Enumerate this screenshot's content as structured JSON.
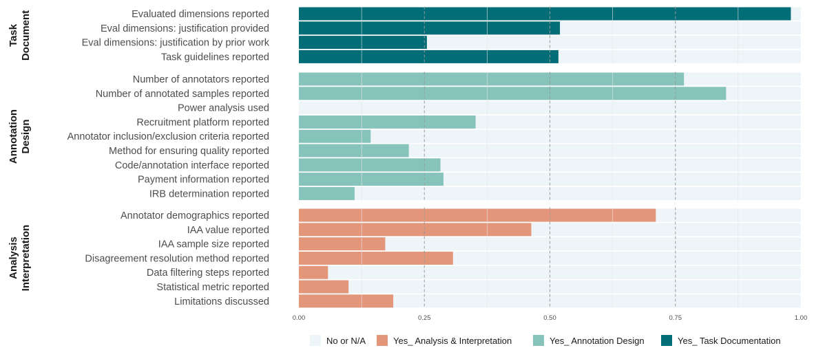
{
  "chart_data": {
    "type": "bar",
    "orientation": "horizontal",
    "stacked": true,
    "xlim": [
      0,
      1
    ],
    "x_ticks": [
      "0.00",
      "0.25",
      "0.50",
      "0.75",
      "1.00"
    ],
    "grid": true,
    "legend_position": "bottom",
    "legend": [
      {
        "label": "No or N/A",
        "color": "#edf5f8"
      },
      {
        "label": "Yes_ Analysis & Interpretation",
        "color": "#e3967a"
      },
      {
        "label": "Yes_ Annotation Design",
        "color": "#86c4bb"
      },
      {
        "label": "Yes_ Task Documentation",
        "color": "#006d77"
      }
    ],
    "groups": [
      {
        "label": [
          "Task",
          "Document"
        ],
        "color": "#006d77",
        "items": [
          {
            "label": "Evaluated dimensions reported",
            "value": 0.98
          },
          {
            "label": "Eval dimensions: justification provided",
            "value": 0.52
          },
          {
            "label": "Eval dimensions: justification by prior work",
            "value": 0.255
          },
          {
            "label": "Task guidelines reported",
            "value": 0.517
          }
        ]
      },
      {
        "label": [
          "Annotation",
          "Design"
        ],
        "color": "#86c4bb",
        "items": [
          {
            "label": "Number of annotators reported",
            "value": 0.767
          },
          {
            "label": "Number of annotated samples reported",
            "value": 0.851
          },
          {
            "label": "Power analysis used",
            "value": 0.0
          },
          {
            "label": "Recruitment platform reported",
            "value": 0.352
          },
          {
            "label": "Annotator inclusion/exclusion criteria reported",
            "value": 0.143
          },
          {
            "label": "Method for ensuring quality reported",
            "value": 0.219
          },
          {
            "label": "Code/annotation interface reported",
            "value": 0.282
          },
          {
            "label": "Payment information reported",
            "value": 0.288
          },
          {
            "label": "IRB determination reported",
            "value": 0.111
          }
        ]
      },
      {
        "label": [
          "Analysis",
          "Interpretation"
        ],
        "color": "#e3967a",
        "items": [
          {
            "label": "Annotator demographics reported",
            "value": 0.711
          },
          {
            "label": "IAA value reported",
            "value": 0.463
          },
          {
            "label": "IAA sample size reported",
            "value": 0.172
          },
          {
            "label": "Disagreement resolution method reported",
            "value": 0.307
          },
          {
            "label": "Data filtering steps reported",
            "value": 0.058
          },
          {
            "label": "Statistical metric reported",
            "value": 0.099
          },
          {
            "label": "Limitations discussed",
            "value": 0.188
          }
        ]
      }
    ]
  }
}
